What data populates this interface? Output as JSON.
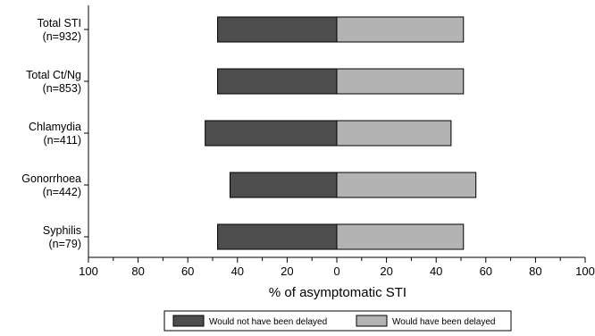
{
  "chart_data": {
    "type": "bar",
    "orientation": "horizontal-diverging",
    "categories": [
      {
        "name": "Total STI",
        "n": "(n=932)"
      },
      {
        "name": "Total Ct/Ng",
        "n": "(n=853)"
      },
      {
        "name": "Chlamydia",
        "n": "(n=411)"
      },
      {
        "name": "Gonorrhoea",
        "n": "(n=442)"
      },
      {
        "name": "Syphilis",
        "n": "(n=79)"
      }
    ],
    "series": [
      {
        "name": "Would not have been delayed",
        "side": "left",
        "color": "#4d4d4d",
        "values": [
          48,
          48,
          53,
          43,
          48
        ]
      },
      {
        "name": "Would have been delayed",
        "side": "right",
        "color": "#b3b3b3",
        "values": [
          51,
          51,
          46,
          56,
          51
        ]
      }
    ],
    "xlabel": "% of asymptomatic STI",
    "xlim": [
      -100,
      100
    ],
    "xticks": [
      -100,
      -80,
      -60,
      -40,
      -20,
      0,
      20,
      40,
      60,
      80,
      100
    ],
    "xtick_labels": [
      "100",
      "80",
      "60",
      "40",
      "20",
      "0",
      "20",
      "40",
      "60",
      "80",
      "100"
    ],
    "grid": false,
    "legend_position": "bottom"
  }
}
